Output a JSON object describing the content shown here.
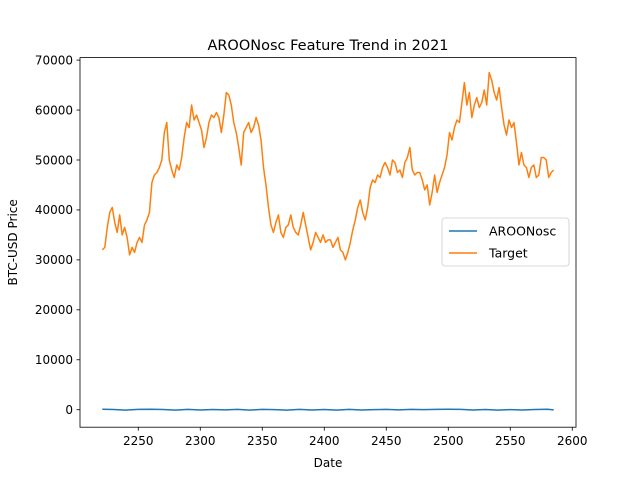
{
  "chart_data": {
    "type": "line",
    "title": "AROONosc Feature Trend in 2021",
    "xlabel": "Date",
    "ylabel": "BTC-USD Price",
    "xlim": [
      2203,
      2603
    ],
    "ylim": [
      -3500,
      70500
    ],
    "xticks": [
      2250,
      2300,
      2350,
      2400,
      2450,
      2500,
      2550,
      2600
    ],
    "yticks": [
      0,
      10000,
      20000,
      30000,
      40000,
      50000,
      60000,
      70000
    ],
    "grid": false,
    "legend": "center-right",
    "series": [
      {
        "name": "AROONosc",
        "color": "#1f77b4",
        "x": [
          2221,
          2230,
          2240,
          2250,
          2260,
          2270,
          2280,
          2290,
          2300,
          2310,
          2320,
          2330,
          2340,
          2350,
          2360,
          2370,
          2380,
          2390,
          2400,
          2410,
          2420,
          2430,
          2440,
          2450,
          2460,
          2470,
          2480,
          2490,
          2500,
          2510,
          2520,
          2530,
          2540,
          2550,
          2560,
          2570,
          2580,
          2585
        ],
        "y": [
          100,
          50,
          -80,
          60,
          90,
          40,
          -90,
          70,
          -60,
          50,
          -40,
          80,
          -70,
          60,
          30,
          -80,
          70,
          -60,
          40,
          -90,
          80,
          -50,
          30,
          60,
          -40,
          70,
          20,
          80,
          90,
          60,
          -50,
          40,
          -80,
          30,
          -60,
          50,
          90,
          -30
        ]
      },
      {
        "name": "Target",
        "color": "#ff7f0e",
        "x": [
          2221,
          2223,
          2225,
          2227,
          2229,
          2231,
          2233,
          2235,
          2237,
          2239,
          2241,
          2243,
          2245,
          2247,
          2249,
          2251,
          2253,
          2255,
          2257,
          2259,
          2261,
          2263,
          2265,
          2267,
          2269,
          2271,
          2273,
          2275,
          2277,
          2279,
          2281,
          2283,
          2285,
          2287,
          2289,
          2291,
          2293,
          2295,
          2297,
          2299,
          2301,
          2303,
          2305,
          2307,
          2309,
          2311,
          2313,
          2315,
          2317,
          2319,
          2321,
          2323,
          2325,
          2327,
          2329,
          2331,
          2333,
          2335,
          2337,
          2339,
          2341,
          2343,
          2345,
          2347,
          2349,
          2351,
          2353,
          2355,
          2357,
          2359,
          2361,
          2363,
          2365,
          2367,
          2369,
          2371,
          2373,
          2375,
          2377,
          2379,
          2381,
          2383,
          2385,
          2387,
          2389,
          2391,
          2393,
          2395,
          2397,
          2399,
          2401,
          2403,
          2405,
          2407,
          2409,
          2411,
          2413,
          2415,
          2417,
          2419,
          2421,
          2423,
          2425,
          2427,
          2429,
          2431,
          2433,
          2435,
          2437,
          2439,
          2441,
          2443,
          2445,
          2447,
          2449,
          2451,
          2453,
          2455,
          2457,
          2459,
          2461,
          2463,
          2465,
          2467,
          2469,
          2471,
          2473,
          2475,
          2477,
          2479,
          2481,
          2483,
          2485,
          2487,
          2489,
          2491,
          2493,
          2495,
          2497,
          2499,
          2501,
          2503,
          2505,
          2507,
          2509,
          2511,
          2513,
          2515,
          2517,
          2519,
          2521,
          2523,
          2525,
          2527,
          2529,
          2531,
          2533,
          2535,
          2537,
          2539,
          2541,
          2543,
          2545,
          2547,
          2549,
          2551,
          2553,
          2555,
          2557,
          2559,
          2561,
          2563,
          2565,
          2567,
          2569,
          2571,
          2573,
          2575,
          2577,
          2579,
          2581,
          2583,
          2585
        ],
        "y": [
          32000,
          32500,
          36500,
          39500,
          40500,
          37500,
          35500,
          39000,
          35000,
          36500,
          34500,
          31000,
          32500,
          31500,
          33500,
          34500,
          33500,
          37000,
          38000,
          39500,
          45500,
          47000,
          47500,
          48500,
          50000,
          55500,
          57500,
          50000,
          48000,
          46500,
          49000,
          48000,
          50500,
          54500,
          57500,
          56500,
          61000,
          58000,
          59000,
          57500,
          56000,
          52500,
          54500,
          57500,
          59000,
          58500,
          59500,
          58500,
          55500,
          59000,
          63500,
          63000,
          61000,
          57500,
          55500,
          52500,
          49000,
          55500,
          56500,
          57500,
          55500,
          56500,
          58500,
          57000,
          54000,
          48500,
          45000,
          40500,
          37000,
          35500,
          37500,
          39000,
          35500,
          34500,
          36500,
          37000,
          39000,
          36500,
          35500,
          35000,
          37000,
          39500,
          37000,
          34500,
          32000,
          33500,
          35500,
          34500,
          33500,
          35000,
          33500,
          34000,
          34000,
          32500,
          33500,
          34500,
          32000,
          31500,
          30000,
          31500,
          33500,
          36000,
          38000,
          40500,
          42000,
          39500,
          38000,
          40500,
          44500,
          46000,
          45500,
          47000,
          46500,
          48500,
          49500,
          48500,
          47000,
          50000,
          49500,
          47500,
          48000,
          46500,
          49500,
          50500,
          52500,
          48000,
          47000,
          47500,
          47500,
          46000,
          44000,
          45000,
          41000,
          43500,
          47000,
          43500,
          45500,
          47000,
          48500,
          51000,
          55500,
          54000,
          56500,
          58000,
          57500,
          61500,
          65500,
          61000,
          63500,
          58500,
          61000,
          62500,
          60500,
          61500,
          64000,
          61000,
          67500,
          66000,
          63500,
          62000,
          64500,
          60500,
          57000,
          55000,
          58000,
          56500,
          57500,
          53500,
          49000,
          51500,
          49000,
          48500,
          46500,
          48500,
          49000,
          46500,
          47000,
          50500,
          50500,
          50000,
          46500,
          47500,
          48000
        ]
      }
    ]
  }
}
